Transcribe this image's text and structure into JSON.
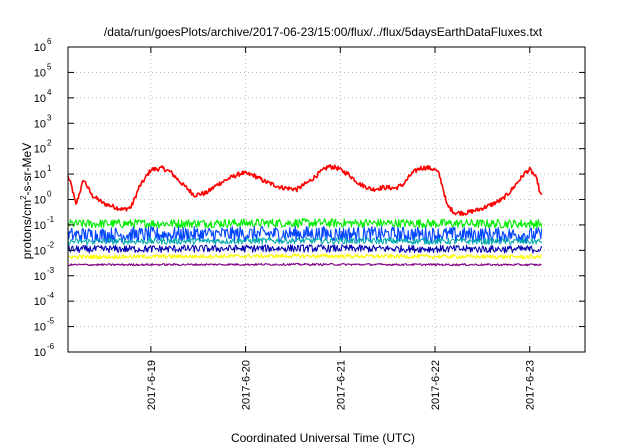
{
  "chart_data": {
    "type": "line",
    "title": "/data/run/goesPlots/archive/2017-06-23/15:00/flux/../flux/5daysEarthDataFluxes.txt",
    "xlabel": "Coordinated Universal Time (UTC)",
    "ylabel": {
      "prefix": "protons/cm",
      "sup": "2",
      "suffix": "-s-sr-MeV"
    },
    "y_scale": "log",
    "ylim": [
      1e-06,
      1000000.0
    ],
    "y_ticks": [
      {
        "base": "10",
        "exp": "-6",
        "value": 1e-06
      },
      {
        "base": "10",
        "exp": "-5",
        "value": 1e-05
      },
      {
        "base": "10",
        "exp": "-4",
        "value": 0.0001
      },
      {
        "base": "10",
        "exp": "-3",
        "value": 0.001
      },
      {
        "base": "10",
        "exp": "-2",
        "value": 0.01
      },
      {
        "base": "10",
        "exp": "-1",
        "value": 0.1
      },
      {
        "base": "10",
        "exp": "0",
        "value": 1
      },
      {
        "base": "10",
        "exp": "1",
        "value": 10
      },
      {
        "base": "10",
        "exp": "2",
        "value": 100
      },
      {
        "base": "10",
        "exp": "3",
        "value": 1000
      },
      {
        "base": "10",
        "exp": "4",
        "value": 10000
      },
      {
        "base": "10",
        "exp": "5",
        "value": 100000
      },
      {
        "base": "10",
        "exp": "6",
        "value": 1000000
      }
    ],
    "x_range": [
      "2017-06-18 03:00",
      "2017-06-23 14:00"
    ],
    "x_ticks": [
      {
        "label": "2017-6-19",
        "value": "2017-06-19 00:00"
      },
      {
        "label": "2017-6-20",
        "value": "2017-06-20 00:00"
      },
      {
        "label": "2017-6-21",
        "value": "2017-06-21 00:00"
      },
      {
        "label": "2017-6-22",
        "value": "2017-06-22 00:00"
      },
      {
        "label": "2017-6-23",
        "value": "2017-06-23 00:00"
      }
    ],
    "grid": true,
    "series": [
      {
        "color": "#ff0000",
        "noise": 0.18,
        "width": 1.6,
        "points": [
          [
            "2017-06-18 03:00",
            8
          ],
          [
            "2017-06-18 04:00",
            3
          ],
          [
            "2017-06-18 05:00",
            0.6
          ],
          [
            "2017-06-18 06:00",
            2
          ],
          [
            "2017-06-18 07:00",
            6
          ],
          [
            "2017-06-18 09:00",
            1.5
          ],
          [
            "2017-06-18 12:00",
            0.7
          ],
          [
            "2017-06-18 15:00",
            0.5
          ],
          [
            "2017-06-18 17:00",
            0.4
          ],
          [
            "2017-06-18 19:00",
            0.5
          ],
          [
            "2017-06-18 20:00",
            1.2
          ],
          [
            "2017-06-18 21:00",
            3
          ],
          [
            "2017-06-18 22:00",
            5
          ],
          [
            "2017-06-19 00:00",
            15
          ],
          [
            "2017-06-19 03:00",
            17
          ],
          [
            "2017-06-19 05:00",
            12
          ],
          [
            "2017-06-19 08:00",
            4
          ],
          [
            "2017-06-19 11:00",
            1.5
          ],
          [
            "2017-06-19 14:00",
            1.8
          ],
          [
            "2017-06-19 17:00",
            4
          ],
          [
            "2017-06-19 20:00",
            7
          ],
          [
            "2017-06-19 23:00",
            11
          ],
          [
            "2017-06-20 02:00",
            9
          ],
          [
            "2017-06-20 05:00",
            5
          ],
          [
            "2017-06-20 09:00",
            3
          ],
          [
            "2017-06-20 13:00",
            2.5
          ],
          [
            "2017-06-20 16:00",
            5
          ],
          [
            "2017-06-20 19:00",
            12
          ],
          [
            "2017-06-20 21:00",
            20
          ],
          [
            "2017-06-20 23:00",
            18
          ],
          [
            "2017-06-21 02:00",
            10
          ],
          [
            "2017-06-21 05:00",
            4
          ],
          [
            "2017-06-21 08:00",
            2.5
          ],
          [
            "2017-06-21 11:00",
            3
          ],
          [
            "2017-06-21 14:00",
            2.8
          ],
          [
            "2017-06-21 16:00",
            4
          ],
          [
            "2017-06-21 18:00",
            10
          ],
          [
            "2017-06-21 20:00",
            17
          ],
          [
            "2017-06-21 22:00",
            18
          ],
          [
            "2017-06-22 00:00",
            15
          ],
          [
            "2017-06-22 01:00",
            10
          ],
          [
            "2017-06-22 02:00",
            3
          ],
          [
            "2017-06-22 03:00",
            0.6
          ],
          [
            "2017-06-22 05:00",
            0.3
          ],
          [
            "2017-06-22 08:00",
            0.3
          ],
          [
            "2017-06-22 11:00",
            0.4
          ],
          [
            "2017-06-22 14:00",
            0.6
          ],
          [
            "2017-06-22 17:00",
            1
          ],
          [
            "2017-06-22 19:00",
            2
          ],
          [
            "2017-06-22 21:00",
            5
          ],
          [
            "2017-06-22 23:00",
            12
          ],
          [
            "2017-06-23 00:00",
            15
          ],
          [
            "2017-06-23 01:00",
            10
          ],
          [
            "2017-06-23 02:00",
            5
          ],
          [
            "2017-06-23 02:30",
            2
          ],
          [
            "2017-06-23 03:00",
            1.3
          ]
        ]
      },
      {
        "color": "#00ee00",
        "noise": 0.35,
        "width": 1.1,
        "points": [
          [
            "2017-06-18 03:00",
            0.11
          ],
          [
            "2017-06-20 12:00",
            0.12
          ],
          [
            "2017-06-23 03:00",
            0.11
          ]
        ]
      },
      {
        "color": "#0044ff",
        "noise": 0.6,
        "width": 1.1,
        "points": [
          [
            "2017-06-18 03:00",
            0.04
          ],
          [
            "2017-06-20 12:00",
            0.045
          ],
          [
            "2017-06-23 03:00",
            0.04
          ]
        ]
      },
      {
        "color": "#00aaaa",
        "noise": 0.25,
        "width": 1.0,
        "points": [
          [
            "2017-06-18 03:00",
            0.022
          ],
          [
            "2017-06-20 12:00",
            0.024
          ],
          [
            "2017-06-23 03:00",
            0.022
          ]
        ]
      },
      {
        "color": "#0000b0",
        "noise": 0.3,
        "width": 1.0,
        "points": [
          [
            "2017-06-18 03:00",
            0.011
          ],
          [
            "2017-06-20 12:00",
            0.012
          ],
          [
            "2017-06-23 03:00",
            0.011
          ]
        ]
      },
      {
        "color": "#ffff00",
        "noise": 0.15,
        "width": 1.2,
        "points": [
          [
            "2017-06-18 03:00",
            0.0055
          ],
          [
            "2017-06-20 12:00",
            0.006
          ],
          [
            "2017-06-23 03:00",
            0.0055
          ]
        ]
      },
      {
        "color": "#800080",
        "noise": 0.08,
        "width": 1.1,
        "points": [
          [
            "2017-06-18 03:00",
            0.0027
          ],
          [
            "2017-06-20 12:00",
            0.0028
          ],
          [
            "2017-06-23 03:00",
            0.0027
          ]
        ]
      }
    ]
  }
}
